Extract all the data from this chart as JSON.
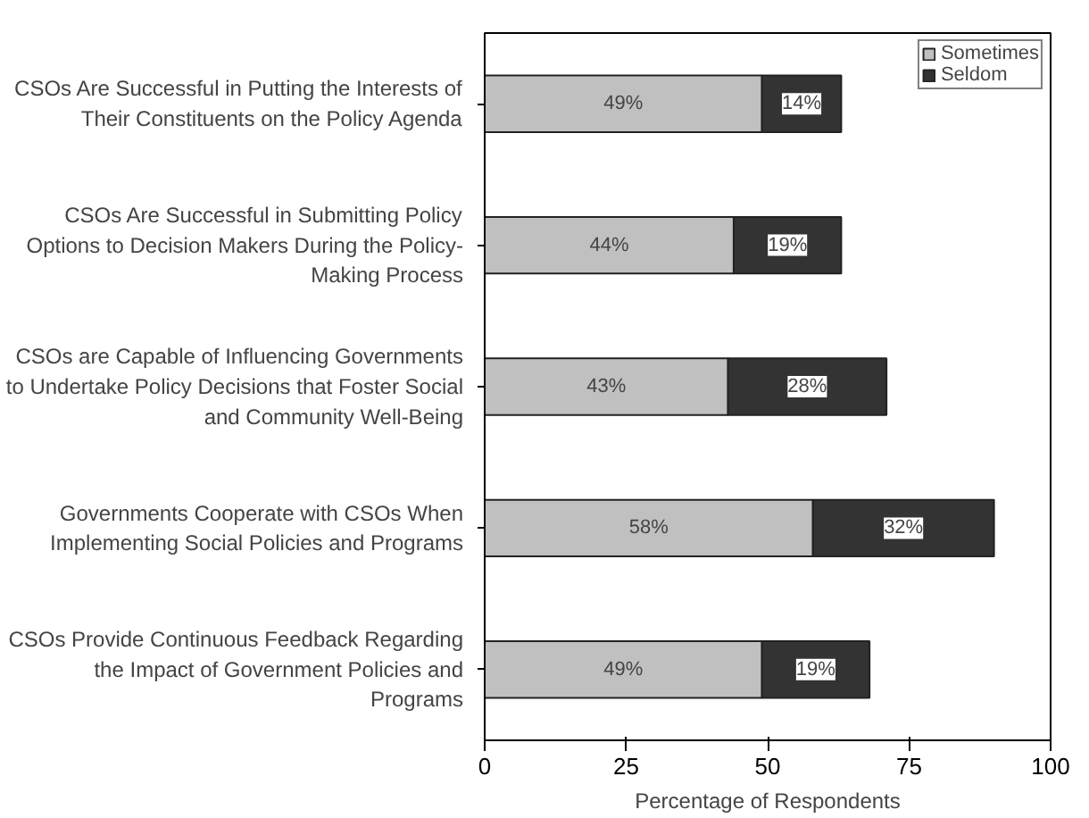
{
  "chart_data": {
    "type": "bar",
    "orientation": "horizontal",
    "stacked": true,
    "xlabel": "Percentage of Respondents",
    "categories": [
      "CSOs Are Successful in Putting the Interests of\nTheir Constituents on the Policy Agenda",
      "CSOs Are Successful in Submitting Policy\nOptions to Decision Makers During the Policy-\nMaking Process",
      "CSOs are Capable of Influencing Governments\nto Undertake Policy Decisions that Foster Social\nand Community Well-Being",
      "Governments Cooperate with CSOs When\nImplementing Social Policies and Programs",
      "CSOs Provide Continuous Feedback Regarding\nthe Impact of Government Policies and\nPrograms"
    ],
    "series": [
      {
        "name": "Sometimes",
        "color": "#c0c0c0",
        "values": [
          49,
          44,
          43,
          58,
          49
        ],
        "value_labels": [
          "49%",
          "44%",
          "43%",
          "58%",
          "49%"
        ]
      },
      {
        "name": "Seldom",
        "color": "#333333",
        "values": [
          14,
          19,
          28,
          32,
          19
        ],
        "value_labels": [
          "14%",
          "19%",
          "28%",
          "32%",
          "19%"
        ]
      }
    ],
    "xlim": [
      0,
      100
    ],
    "xticks": [
      0,
      25,
      50,
      75,
      100
    ],
    "grid": false,
    "legend": "top right"
  }
}
